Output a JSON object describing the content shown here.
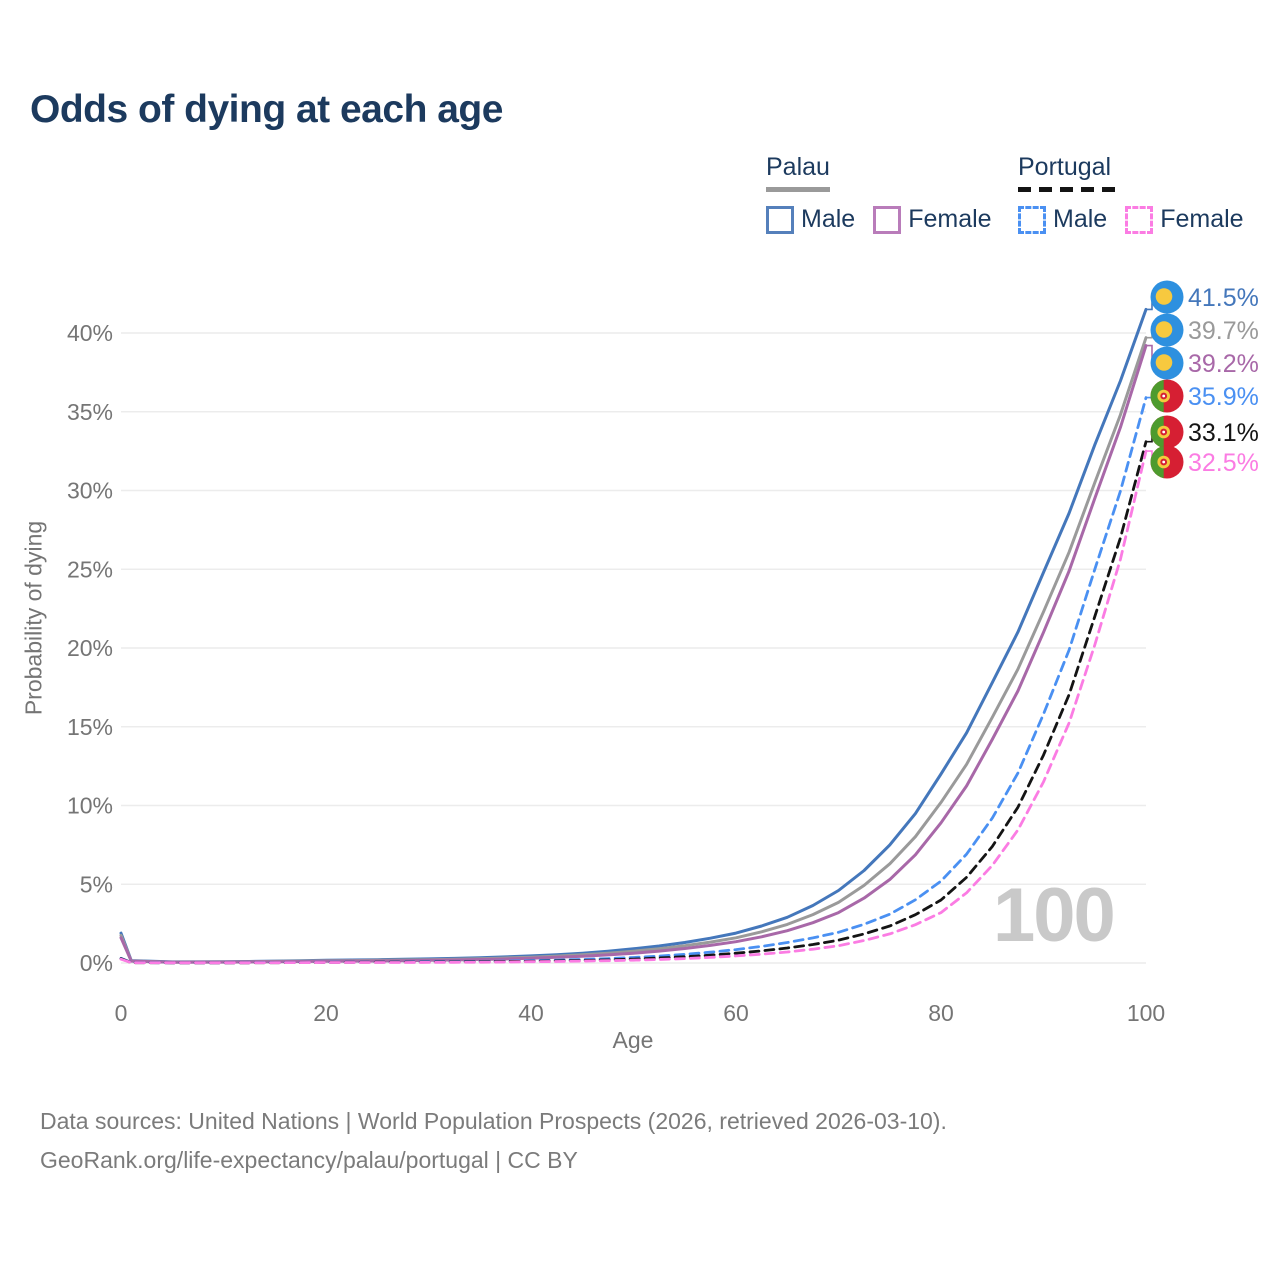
{
  "title": "Odds of dying at each age",
  "watermark": "100",
  "legend": {
    "palau": {
      "name": "Palau",
      "male": "Male",
      "female": "Female"
    },
    "portugal": {
      "name": "Portugal",
      "male": "Male",
      "female": "Female"
    }
  },
  "footer": {
    "line1": "Data sources: United Nations | World Population Prospects (2026, retrieved 2026-03-10).",
    "line2": "GeoRank.org/life-expectancy/palau/portugal | CC BY"
  },
  "colors": {
    "title_text": "#1c3a5e",
    "axis_text": "#757575",
    "gridline": "#ececec",
    "palau_male": "#4477bb",
    "palau_both": "#9a9a9a",
    "palau_female": "#a868a8",
    "portugal_male": "#4a90f2",
    "portugal_both": "#141414",
    "portugal_female": "#fb7ce3"
  },
  "chart_data": {
    "type": "line",
    "title": "Odds of dying at each age",
    "xlabel": "Age",
    "ylabel": "Probability of dying",
    "xlim": [
      0,
      100
    ],
    "ylim": [
      0,
      42
    ],
    "xticks": [
      0,
      20,
      40,
      60,
      80,
      100
    ],
    "yticks": [
      0,
      5,
      10,
      15,
      20,
      25,
      30,
      35,
      40
    ],
    "ytick_suffix": "%",
    "grid": "horizontal",
    "legend_position": "top-right",
    "x_ages": [
      0,
      1,
      5,
      10,
      15,
      20,
      25,
      30,
      35,
      40,
      45,
      50,
      55,
      60,
      65,
      70,
      75,
      80,
      85,
      90,
      95,
      100
    ],
    "series": [
      {
        "id": "palau-male",
        "name": "Palau Male",
        "country": "Palau",
        "flag": "palau",
        "style": "solid",
        "color": "#4477bb",
        "end_label": "41.5%",
        "end_value": 41.5,
        "values": [
          1.9,
          0.15,
          0.07,
          0.08,
          0.12,
          0.17,
          0.21,
          0.26,
          0.33,
          0.45,
          0.62,
          0.9,
          1.3,
          1.9,
          2.9,
          4.6,
          7.5,
          12.0,
          17.8,
          24.8,
          32.9,
          41.5
        ]
      },
      {
        "id": "palau-both",
        "name": "Palau Both sexes",
        "country": "Palau",
        "flag": "palau",
        "style": "solid",
        "color": "#9a9a9a",
        "end_label": "39.7%",
        "end_value": 39.7,
        "values": [
          1.75,
          0.13,
          0.06,
          0.07,
          0.1,
          0.14,
          0.17,
          0.21,
          0.27,
          0.37,
          0.52,
          0.75,
          1.1,
          1.6,
          2.45,
          3.85,
          6.3,
          10.2,
          15.6,
          22.3,
          30.5,
          39.7
        ]
      },
      {
        "id": "palau-female",
        "name": "Palau Female",
        "country": "Palau",
        "flag": "palau",
        "style": "solid",
        "color": "#a868a8",
        "end_label": "39.2%",
        "end_value": 39.2,
        "values": [
          1.6,
          0.12,
          0.05,
          0.06,
          0.08,
          0.11,
          0.13,
          0.17,
          0.22,
          0.3,
          0.43,
          0.62,
          0.92,
          1.35,
          2.05,
          3.2,
          5.3,
          8.9,
          14.2,
          21.0,
          29.5,
          39.2
        ]
      },
      {
        "id": "portugal-male",
        "name": "Portugal Male",
        "country": "Portugal",
        "flag": "portugal",
        "style": "dashed",
        "color": "#4a90f2",
        "end_label": "35.9%",
        "end_value": 35.9,
        "values": [
          0.3,
          0.03,
          0.01,
          0.01,
          0.03,
          0.05,
          0.06,
          0.08,
          0.1,
          0.15,
          0.22,
          0.35,
          0.55,
          0.85,
          1.3,
          1.95,
          3.1,
          5.2,
          9.2,
          15.8,
          25.0,
          35.9
        ]
      },
      {
        "id": "portugal-both",
        "name": "Portugal Both sexes",
        "country": "Portugal",
        "flag": "portugal",
        "style": "dashed",
        "color": "#141414",
        "end_label": "33.1%",
        "end_value": 33.1,
        "values": [
          0.27,
          0.02,
          0.01,
          0.01,
          0.02,
          0.04,
          0.05,
          0.06,
          0.08,
          0.11,
          0.16,
          0.25,
          0.4,
          0.62,
          0.95,
          1.45,
          2.35,
          4.0,
          7.4,
          13.2,
          22.0,
          33.1
        ]
      },
      {
        "id": "portugal-female",
        "name": "Portugal Female",
        "country": "Portugal",
        "flag": "portugal",
        "style": "dashed",
        "color": "#fb7ce3",
        "end_label": "32.5%",
        "end_value": 32.5,
        "values": [
          0.24,
          0.02,
          0.01,
          0.01,
          0.02,
          0.03,
          0.03,
          0.04,
          0.05,
          0.08,
          0.12,
          0.18,
          0.28,
          0.45,
          0.7,
          1.1,
          1.85,
          3.2,
          6.2,
          11.5,
          20.2,
          32.5
        ]
      }
    ]
  }
}
